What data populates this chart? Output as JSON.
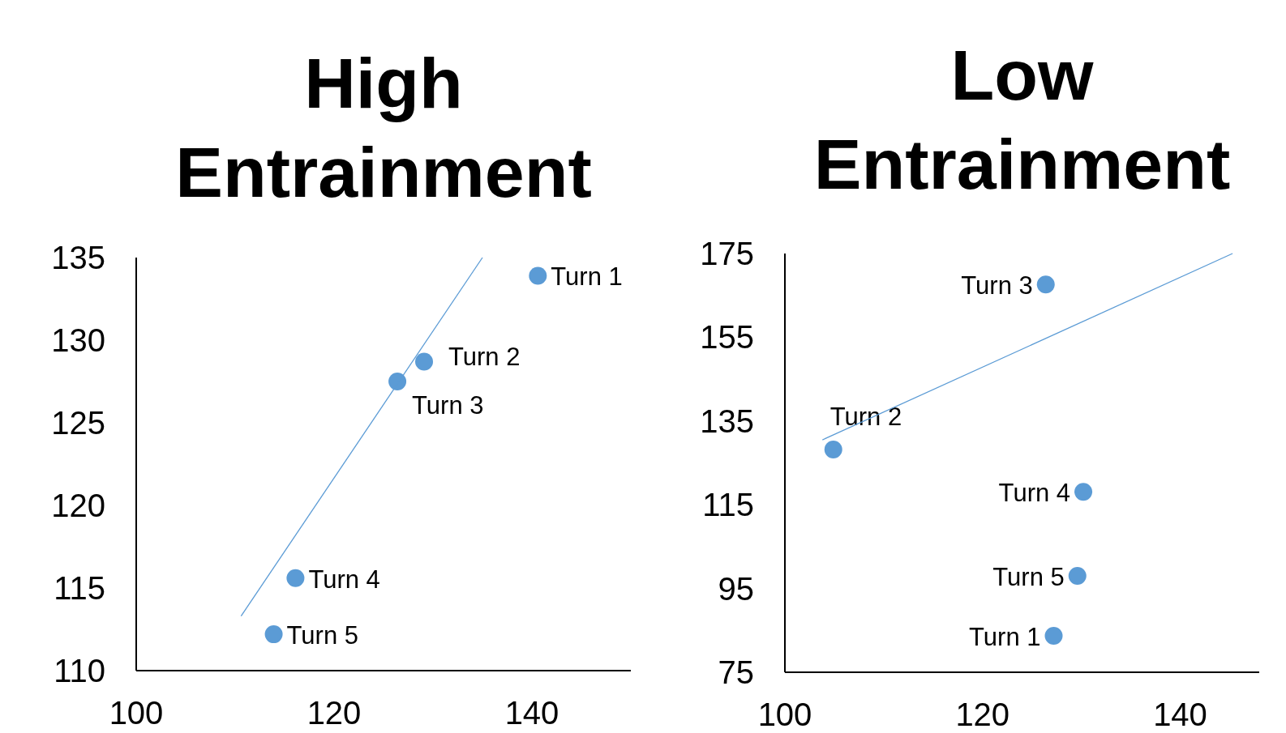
{
  "chart_data": [
    {
      "type": "scatter",
      "title": "High Entrainment",
      "xlim": [
        100,
        150
      ],
      "xticks": [
        100,
        120,
        140
      ],
      "ylim": [
        110,
        135
      ],
      "yticks": [
        110,
        115,
        120,
        125,
        130,
        135
      ],
      "grid": false,
      "series": [
        {
          "color": "#5b9bd5",
          "marker": "circle",
          "x": [
            140.6,
            129.1,
            126.4,
            116.1,
            113.9
          ],
          "values": [
            133.9,
            128.7,
            127.5,
            115.6,
            112.2
          ],
          "value_labels": [
            "Turn 1",
            "Turn 2",
            "Turn 3",
            "Turn 4",
            "Turn 5"
          ]
        },
        {
          "type": "line",
          "color": "#5b9bd5",
          "x": [
            110.6,
            135.0
          ],
          "values": [
            113.3,
            135
          ]
        }
      ]
    },
    {
      "type": "scatter",
      "title": "Low Entrainment",
      "xlim": [
        100,
        148
      ],
      "xticks": [
        100,
        120,
        140
      ],
      "ylim": [
        75,
        175
      ],
      "yticks": [
        75,
        95,
        115,
        135,
        155,
        175
      ],
      "grid": false,
      "series": [
        {
          "color": "#5b9bd5",
          "marker": "circle",
          "x": [
            127.2,
            104.9,
            126.4,
            130.2,
            129.6
          ],
          "values": [
            83.7,
            128.2,
            167.6,
            118.1,
            98.0
          ],
          "value_labels": [
            "Turn 1",
            "Turn 2",
            "Turn 3",
            "Turn 4",
            "Turn 5"
          ]
        },
        {
          "type": "line",
          "color": "#5b9bd5",
          "x": [
            103.8,
            145.3
          ],
          "values": [
            130.5,
            175
          ]
        }
      ]
    }
  ]
}
